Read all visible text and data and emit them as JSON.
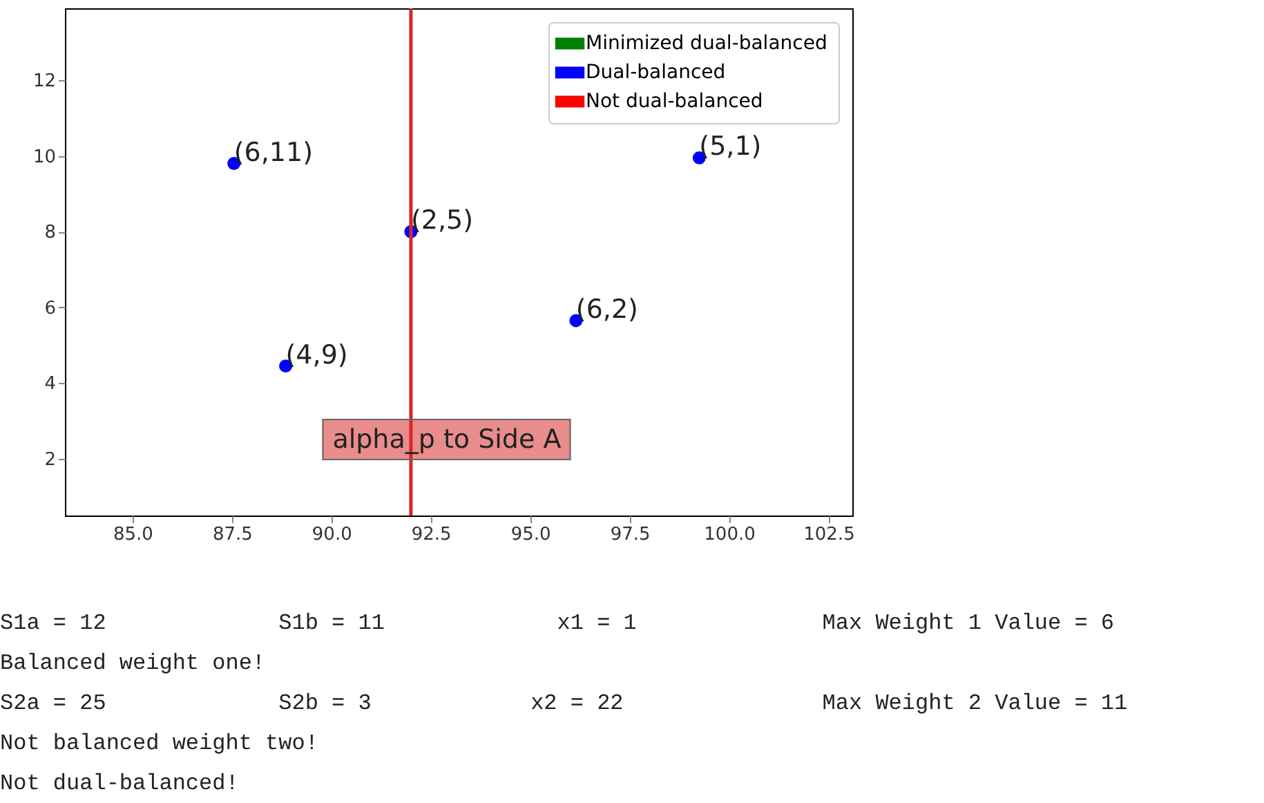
{
  "chart_data": {
    "type": "scatter",
    "x": [
      87.55,
      88.85,
      92.0,
      96.15,
      99.25
    ],
    "series": [
      {
        "name": "Minimized dual-balanced",
        "color": "#008000",
        "values": [
          null,
          null,
          null,
          null,
          null
        ]
      },
      {
        "name": "Dual-balanced",
        "color": "#0000ff",
        "values": [
          9.8,
          4.45,
          8.0,
          5.65,
          9.95
        ]
      },
      {
        "name": "Not dual-balanced",
        "color": "#ff0000",
        "values": [
          null,
          null,
          null,
          null,
          null
        ]
      }
    ],
    "xlim": [
      83.3,
      103.1
    ],
    "ylim": [
      0.5,
      13.9
    ],
    "xticks": [
      {
        "value": 85,
        "label": "85.0"
      },
      {
        "value": 87.5,
        "label": "87.5"
      },
      {
        "value": 90,
        "label": "90.0"
      },
      {
        "value": 92.5,
        "label": "92.5"
      },
      {
        "value": 95,
        "label": "95.0"
      },
      {
        "value": 97.5,
        "label": "97.5"
      },
      {
        "value": 100,
        "label": "100.0"
      },
      {
        "value": 102.5,
        "label": "102.5"
      }
    ],
    "yticks": [
      2,
      4,
      6,
      8,
      10,
      12
    ],
    "grid": false,
    "legend": "top right",
    "marker": "circle",
    "ref_lines": [
      {
        "axis": "x",
        "value": 92.0,
        "label": "alpha_p to Side A",
        "color": "#d62728"
      }
    ],
    "annotations": [
      {
        "text": "(6,11)",
        "x": 87.55,
        "y": 9.8
      },
      {
        "text": "(4,9)",
        "x": 88.85,
        "y": 4.45
      },
      {
        "text": "(2,5)",
        "x": 92.0,
        "y": 8.0
      },
      {
        "text": "(6,2)",
        "x": 96.15,
        "y": 5.65
      },
      {
        "text": "(5,1)",
        "x": 99.25,
        "y": 9.95
      },
      "S1a = 12             S1b = 11             x1 = 1              Max Weight 1 Value = 6",
      "Balanced weight one!",
      "S2a = 25             S2b = 3            x2 = 22               Max Weight 2 Value = 11",
      "Not balanced weight two!",
      "Not dual-balanced!"
    ]
  }
}
